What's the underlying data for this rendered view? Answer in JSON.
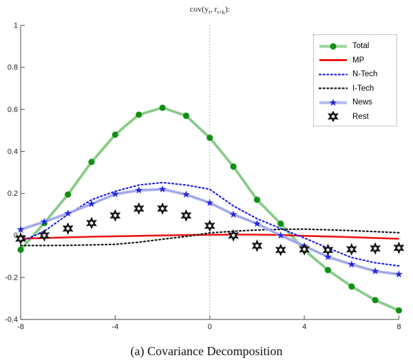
{
  "figure": {
    "title": {
      "prefix": "cov(y",
      "sub1": "t",
      "mid": ", r",
      "sub2": "t+k",
      "suffix": "):"
    },
    "caption": "(a) Covariance Decomposition"
  },
  "chart_data": {
    "type": "line",
    "title": "cov(y_t, r_(t+k)):",
    "xlabel": "",
    "ylabel": "",
    "xlim": [
      -8,
      8
    ],
    "ylim": [
      -0.4,
      1
    ],
    "xticks": [
      -8,
      -4,
      0,
      4,
      8
    ],
    "yticks": [
      1,
      0.8,
      0.6,
      0.4,
      0.2,
      0,
      -0.2,
      -0.4
    ],
    "zero_vertical_gridline": true,
    "grid": "off",
    "legend_position": "top-right",
    "axis_color": "#666666",
    "x": [
      -8,
      -7,
      -6,
      -5,
      -4,
      -3,
      -2,
      -1,
      0,
      1,
      2,
      3,
      4,
      5,
      6,
      7,
      8
    ],
    "series": [
      {
        "name": "Total",
        "style": "solid-band",
        "line_color": "#8fd08f",
        "edge_color": "#5cb85c",
        "marker": "circle",
        "marker_color": "#119111",
        "values": [
          -0.068,
          0.059,
          0.195,
          0.35,
          0.48,
          0.575,
          0.608,
          0.57,
          0.465,
          0.328,
          0.17,
          0.056,
          -0.069,
          -0.165,
          -0.243,
          -0.308,
          -0.357
        ]
      },
      {
        "name": "MP",
        "style": "solid",
        "line_color": "#ee1414",
        "edge_color": "#ee1414",
        "marker": "none",
        "marker_color": "#ee1414",
        "values": [
          -0.015,
          -0.012,
          -0.009,
          -0.006,
          -0.004,
          -0.002,
          0,
          0.002,
          0.003,
          0.004,
          0.004,
          0.002,
          -0.002,
          -0.005,
          -0.008,
          -0.012,
          -0.016
        ]
      },
      {
        "name": "N-Tech",
        "style": "dotted",
        "line_color": "#2121e0",
        "edge_color": "#2121e0",
        "marker": "none",
        "marker_color": "#2121e0",
        "values": [
          -0.03,
          0.02,
          0.1,
          0.17,
          0.21,
          0.24,
          0.252,
          0.24,
          0.22,
          0.14,
          0.08,
          0.033,
          -0.012,
          -0.06,
          -0.105,
          -0.13,
          -0.145
        ]
      },
      {
        "name": "I-Tech",
        "style": "dotted",
        "line_color": "#141414",
        "edge_color": "#141414",
        "marker": "none",
        "marker_color": "#141414",
        "values": [
          -0.048,
          -0.048,
          -0.047,
          -0.045,
          -0.042,
          -0.032,
          -0.018,
          -0.005,
          0.012,
          0.02,
          0.026,
          0.029,
          0.03,
          0.027,
          0.023,
          0.018,
          0.013
        ]
      },
      {
        "name": "News",
        "style": "solid-band",
        "line_color": "#a9aeec",
        "edge_color": "#8b92e0",
        "marker": "pentagram",
        "marker_color": "#2626dd",
        "values": [
          0.028,
          0.065,
          0.105,
          0.15,
          0.197,
          0.215,
          0.22,
          0.195,
          0.155,
          0.1,
          0.056,
          0,
          -0.05,
          -0.102,
          -0.138,
          -0.17,
          -0.185
        ]
      },
      {
        "name": "Rest",
        "style": "none",
        "line_color": "#111111",
        "edge_color": "#111111",
        "marker": "hexagram",
        "marker_color": "#111111",
        "values": [
          -0.015,
          0,
          0.033,
          0.059,
          0.095,
          0.128,
          0.128,
          0.095,
          0.046,
          0,
          -0.049,
          -0.069,
          -0.066,
          -0.069,
          -0.066,
          -0.062,
          -0.059
        ]
      }
    ]
  }
}
